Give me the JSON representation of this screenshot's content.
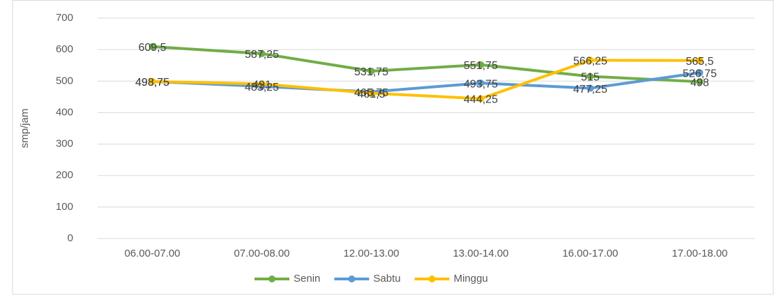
{
  "chart_data": {
    "type": "line",
    "y_label": "smp/jam",
    "categories": [
      "06.00-07.00",
      "07.00-08.00",
      "12.00-13.00",
      "13.00-14.00",
      "16.00-17.00",
      "17.00-18.00"
    ],
    "series": [
      {
        "name": "Senin",
        "color": "#70ad47",
        "values": [
          609.5,
          587.25,
          531.75,
          551.75,
          515,
          498
        ],
        "value_labels": [
          "609,5",
          "587,25",
          "531,75",
          "551,75",
          "515",
          "498"
        ]
      },
      {
        "name": "Sabtu",
        "color": "#5b9bd5",
        "values": [
          498.75,
          483.25,
          465.75,
          493.75,
          477.25,
          526.75
        ],
        "value_labels": [
          "498,75",
          "483,25",
          "465,75",
          "493,75",
          "477,25",
          "526,75"
        ]
      },
      {
        "name": "Minggu",
        "color": "#ffc000",
        "values": [
          498.75,
          491,
          461.5,
          444.25,
          566.25,
          565.5
        ],
        "value_labels": [
          "498,75",
          "491",
          "461,5",
          "444,25",
          "566,25",
          "565,5"
        ]
      }
    ],
    "ylim": [
      0,
      700
    ],
    "yticks": [
      0,
      100,
      200,
      300,
      400,
      500,
      600,
      700
    ],
    "grid": true,
    "legend": "bottom"
  }
}
